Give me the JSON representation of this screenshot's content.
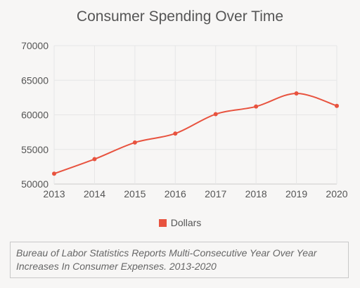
{
  "chart_data": {
    "type": "line",
    "title": "Consumer Spending Over Time",
    "xlabel": "",
    "ylabel": "",
    "x": [
      2013,
      2014,
      2015,
      2016,
      2017,
      2018,
      2019,
      2020
    ],
    "series": [
      {
        "name": "Dollars",
        "values": [
          51500,
          53600,
          56000,
          57300,
          60100,
          61200,
          63100,
          61300
        ]
      }
    ],
    "ylim": [
      50000,
      70000
    ],
    "yticks": [
      70000,
      65000,
      60000,
      55000,
      50000
    ],
    "xticks": [
      "2013",
      "2014",
      "2015",
      "2016",
      "2017",
      "2018",
      "2019",
      "2020"
    ],
    "grid": true,
    "legend_position": "bottom",
    "colors": {
      "series": "#e8533f",
      "grid": "#e6e6e6",
      "axis": "#cccccc"
    }
  },
  "caption": "Bureau of Labor Statistics Reports Multi-Consecutive Year Over Year Increases In Consumer Expenses. 2013-2020"
}
